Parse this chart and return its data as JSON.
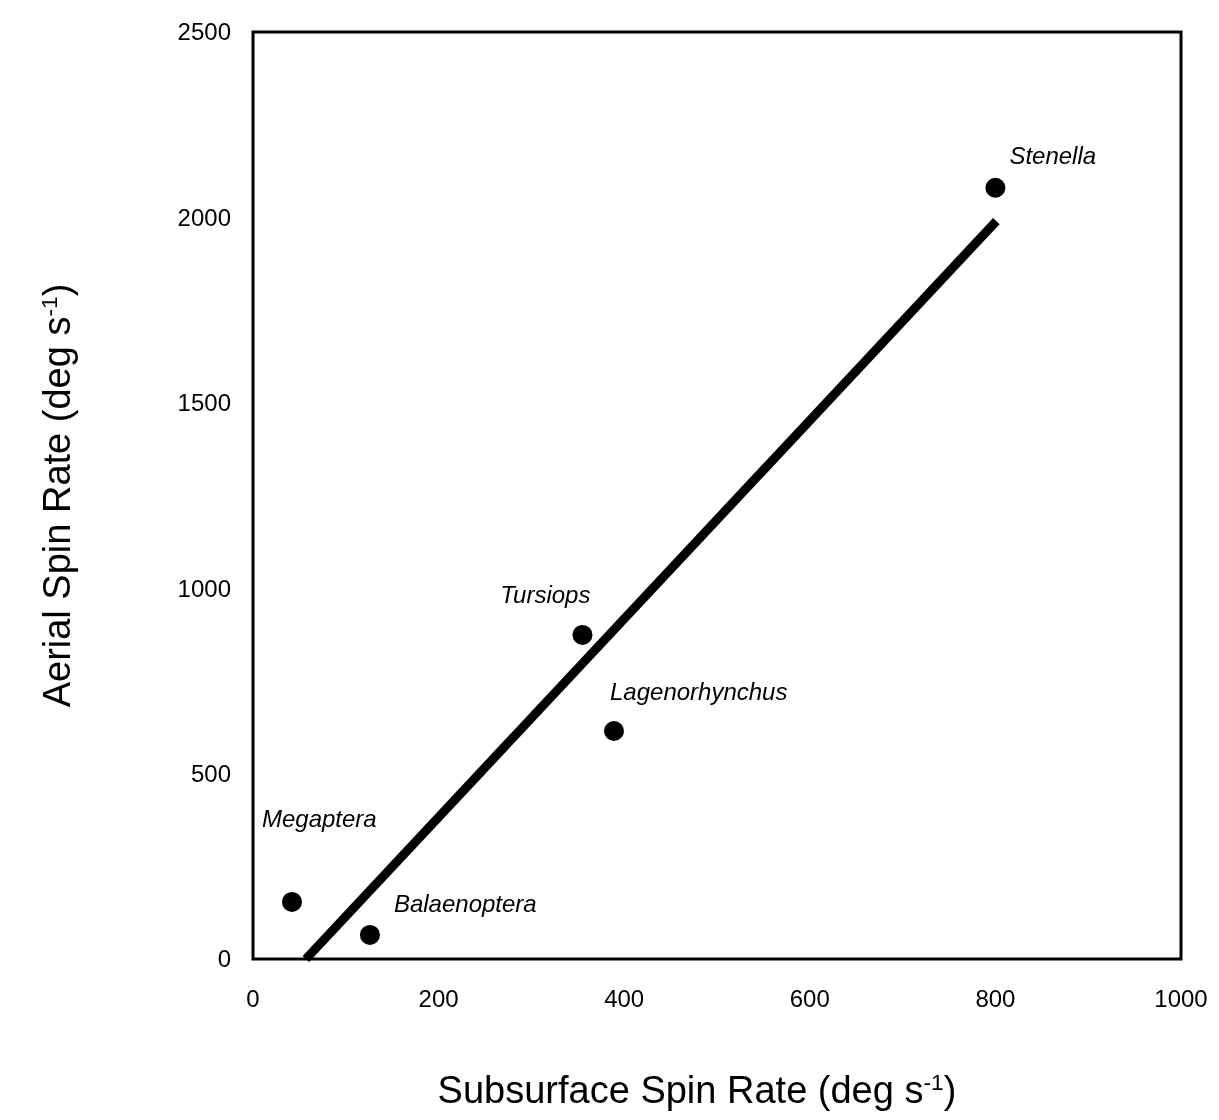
{
  "chart_data": {
    "type": "scatter",
    "xlabel": "Subsurface Spin Rate (deg s$^{-1}$)",
    "ylabel": "Aerial Spin Rate (deg s$^{-1}$)",
    "xlim": [
      0,
      1000
    ],
    "xticks": [
      0,
      200,
      400,
      600,
      800,
      1000
    ],
    "ylim": [
      0,
      2500
    ],
    "yticks": [
      0,
      500,
      1000,
      1500,
      2000,
      2500
    ],
    "grid": false,
    "marker": "circle",
    "series": [
      {
        "color": "#000000",
        "x": [
          800,
          355,
          389,
          42,
          126
        ],
        "values": [
          2080,
          874,
          615,
          154,
          65
        ]
      },
      {
        "type": "line",
        "color": "#000000",
        "x": [
          57,
          801
        ],
        "values": [
          0,
          1990
        ],
        "marker": "none",
        "line_style": "solid"
      }
    ],
    "annotations": [
      {
        "text": "Stenella",
        "x": 800,
        "y": 2080
      },
      {
        "text": "Tursiops",
        "x": 355,
        "y": 874
      },
      {
        "text": "Lagenorhynchus",
        "x": 389,
        "y": 615
      },
      {
        "text": "Megaptera",
        "x": 42,
        "y": 154
      },
      {
        "text": "Balaenoptera",
        "x": 126,
        "y": 65
      }
    ]
  }
}
